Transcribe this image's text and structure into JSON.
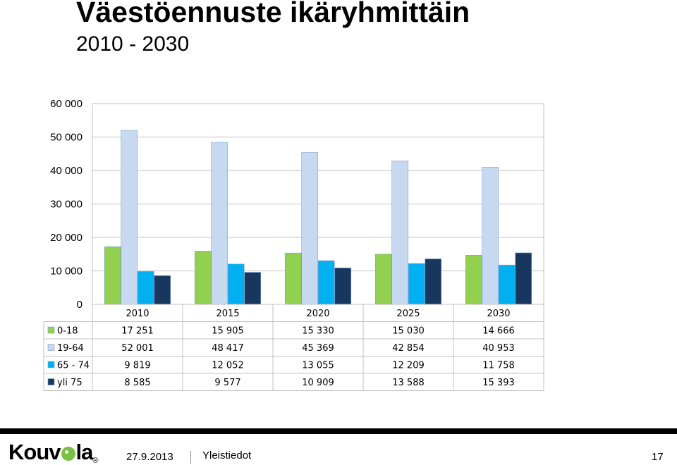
{
  "slide": {
    "title": "Väestöennuste ikäryhmittäin",
    "subtitle": "2010 - 2030"
  },
  "chart_data": {
    "type": "bar",
    "categories": [
      "2010",
      "2015",
      "2020",
      "2025",
      "2030"
    ],
    "series": [
      {
        "name": "0-18",
        "color": "#92d050",
        "values": [
          17251,
          15905,
          15330,
          15030,
          14666
        ],
        "labels": [
          "17 251",
          "15 905",
          "15 330",
          "15 030",
          "14 666"
        ]
      },
      {
        "name": "19-64",
        "color": "#c6d9f1",
        "values": [
          52001,
          48417,
          45369,
          42854,
          40953
        ],
        "labels": [
          "52 001",
          "48 417",
          "45 369",
          "42 854",
          "40 953"
        ]
      },
      {
        "name": "65 - 74",
        "color": "#00b0f0",
        "values": [
          9819,
          12052,
          13055,
          12209,
          11758
        ],
        "labels": [
          "9 819",
          "12 052",
          "13 055",
          "12 209",
          "11 758"
        ]
      },
      {
        "name": "yli 75",
        "color": "#17375e",
        "values": [
          8585,
          9577,
          10909,
          13588,
          15393
        ],
        "labels": [
          "8 585",
          "9 577",
          "10 909",
          "13 588",
          "15 393"
        ]
      }
    ],
    "ylim": [
      0,
      60000
    ],
    "yticks": [
      0,
      10000,
      20000,
      30000,
      40000,
      50000,
      60000
    ],
    "ytick_labels": [
      "0",
      "10 000",
      "20 000",
      "30 000",
      "40 000",
      "50 000",
      "60 000"
    ],
    "grid": true,
    "legend": "data-table"
  },
  "footer": {
    "logo_text_a": "Kouv",
    "logo_text_b": "la",
    "logo_reg": "®",
    "date": "27.9.2013",
    "section": "Yleistiedot",
    "page": "17"
  }
}
